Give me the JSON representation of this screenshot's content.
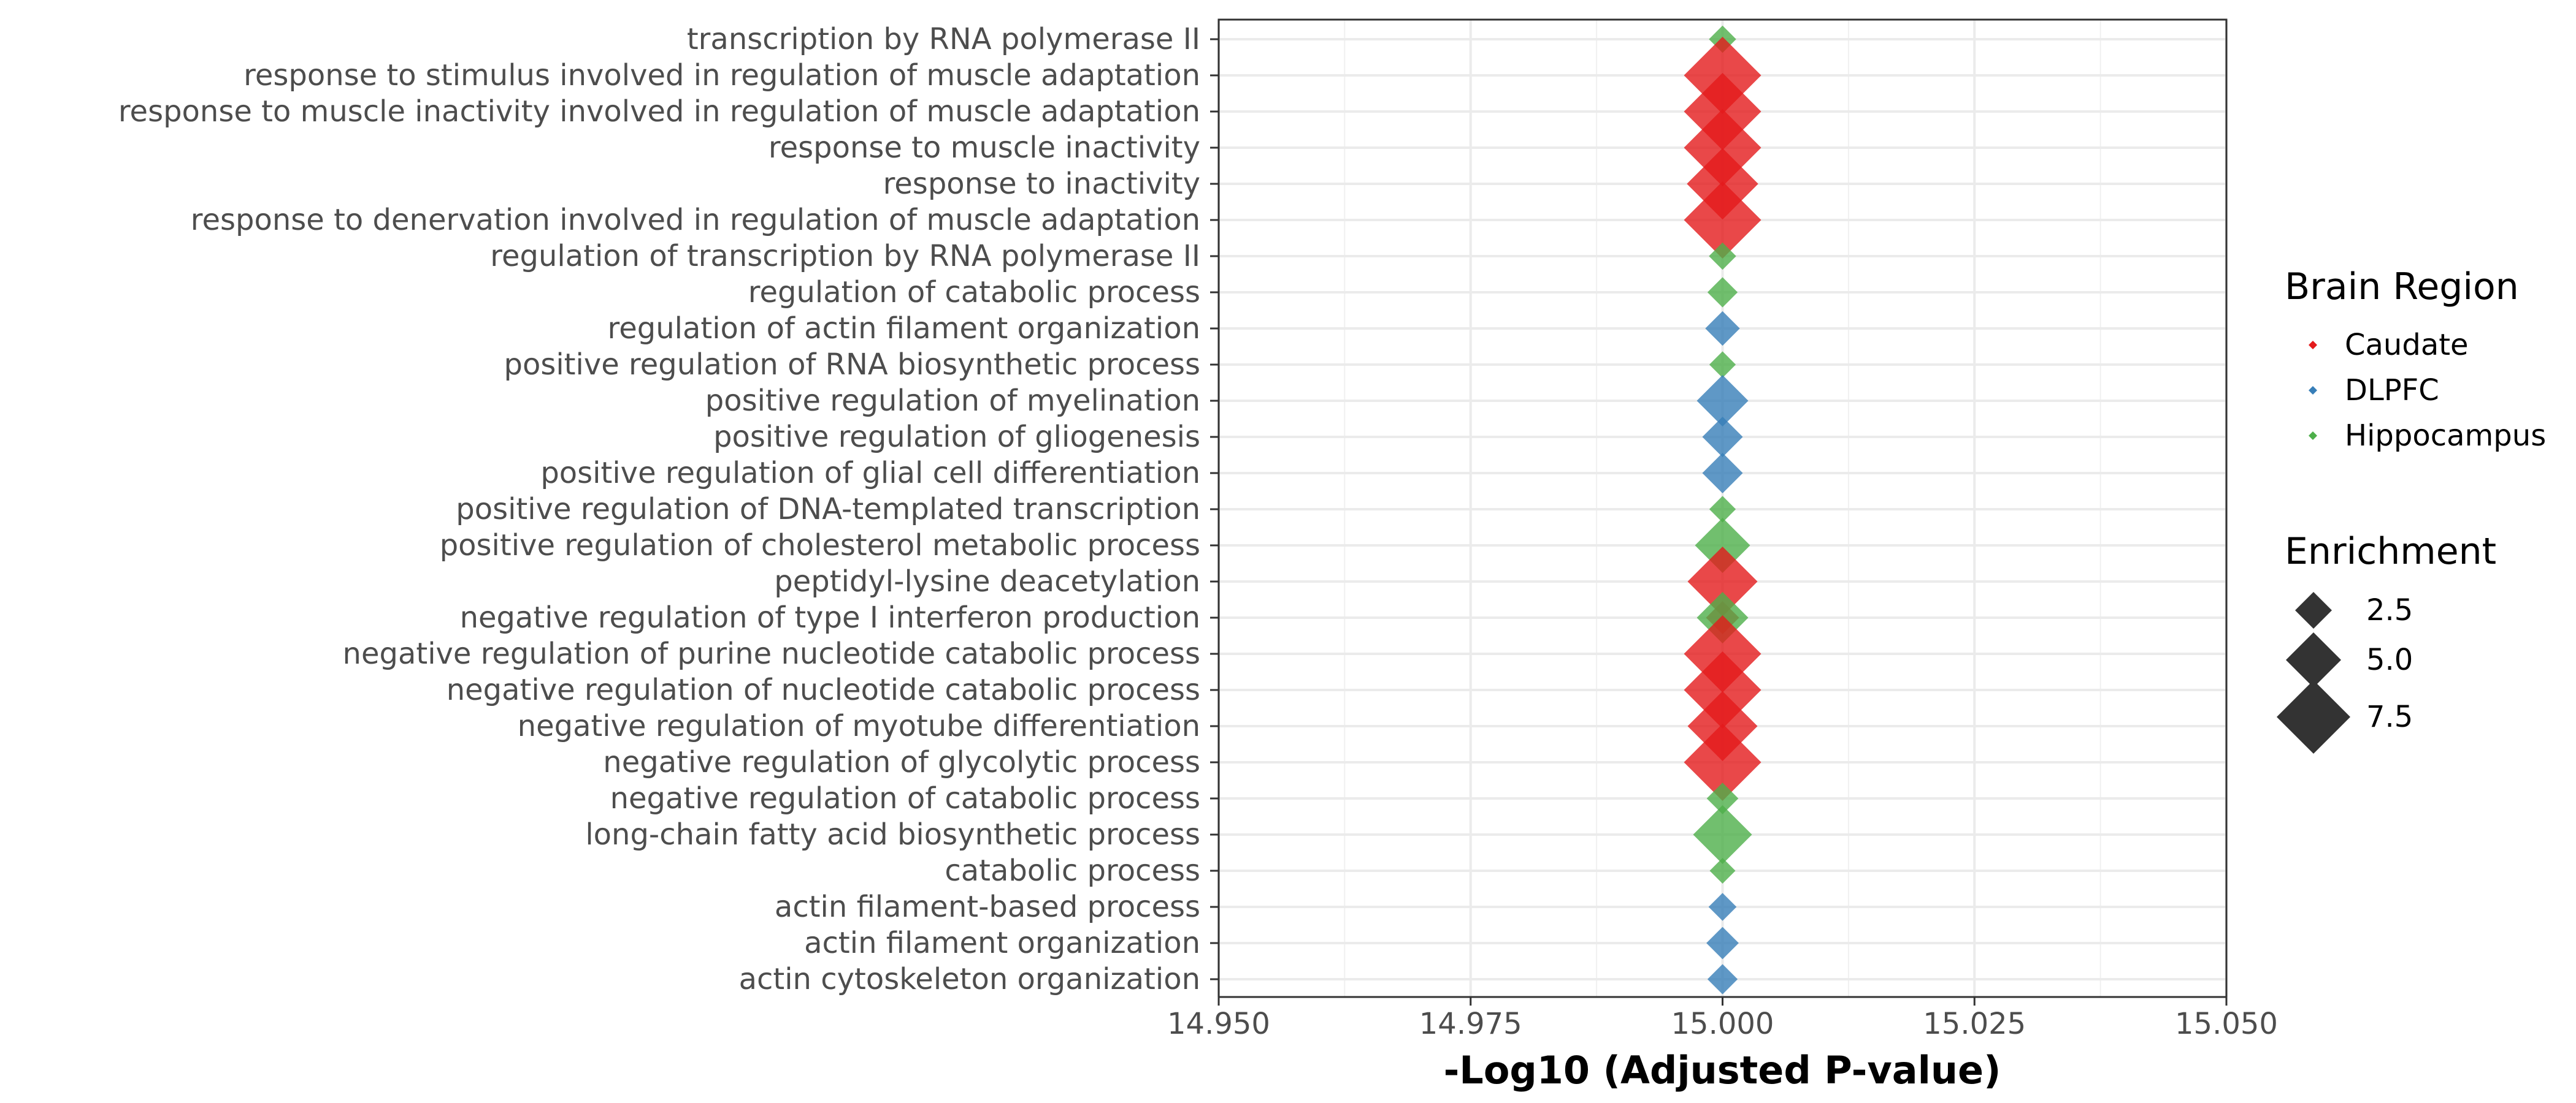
{
  "chart_data": {
    "type": "scatter",
    "xlabel": "-Log10 (Adjusted P-value)",
    "ylabel": "",
    "xlim": [
      14.95,
      15.05
    ],
    "xticks": [
      14.95,
      14.975,
      15.0,
      15.025,
      15.05
    ],
    "xtick_labels": [
      "14.950",
      "14.975",
      "15.000",
      "15.025",
      "15.050"
    ],
    "grid": true,
    "legend_position": "right",
    "colors": {
      "Caudate": "#e41a1c",
      "DLPFC": "#377eb8",
      "Hippocampus": "#4daf4a"
    },
    "categories": [
      "transcription by RNA polymerase II",
      "response to stimulus involved in regulation of muscle adaptation",
      "response to muscle inactivity involved in regulation of muscle adaptation",
      "response to muscle inactivity",
      "response to inactivity",
      "response to denervation involved in regulation of muscle adaptation",
      "regulation of transcription by RNA polymerase II",
      "regulation of catabolic process",
      "regulation of actin filament organization",
      "positive regulation of RNA biosynthetic process",
      "positive regulation of myelination",
      "positive regulation of gliogenesis",
      "positive regulation of glial cell differentiation",
      "positive regulation of DNA-templated transcription",
      "positive regulation of cholesterol metabolic process",
      "peptidyl-lysine deacetylation",
      "negative regulation of type I interferon production",
      "negative regulation of purine nucleotide catabolic process",
      "negative regulation of nucleotide catabolic process",
      "negative regulation of myotube differentiation",
      "negative regulation of glycolytic process",
      "negative regulation of catabolic process",
      "long-chain fatty acid biosynthetic process",
      "catabolic process",
      "actin filament-based process",
      "actin filament organization",
      "actin cytoskeleton organization"
    ],
    "points": [
      {
        "term": "transcription by RNA polymerase II",
        "x": 15.0,
        "region": "Hippocampus",
        "enrichment": 1.2
      },
      {
        "term": "response to stimulus involved in regulation of muscle adaptation",
        "x": 15.0,
        "region": "Caudate",
        "enrichment": 8.0
      },
      {
        "term": "response to muscle inactivity involved in regulation of muscle adaptation",
        "x": 15.0,
        "region": "Caudate",
        "enrichment": 8.0
      },
      {
        "term": "response to muscle inactivity",
        "x": 15.0,
        "region": "Caudate",
        "enrichment": 8.0
      },
      {
        "term": "response to inactivity",
        "x": 15.0,
        "region": "Caudate",
        "enrichment": 7.2
      },
      {
        "term": "response to denervation involved in regulation of muscle adaptation",
        "x": 15.0,
        "region": "Caudate",
        "enrichment": 8.0
      },
      {
        "term": "regulation of transcription by RNA polymerase II",
        "x": 15.0,
        "region": "Hippocampus",
        "enrichment": 1.2
      },
      {
        "term": "regulation of catabolic process",
        "x": 15.0,
        "region": "Hippocampus",
        "enrichment": 1.6
      },
      {
        "term": "regulation of actin filament organization",
        "x": 15.0,
        "region": "DLPFC",
        "enrichment": 2.2
      },
      {
        "term": "positive regulation of RNA biosynthetic process",
        "x": 15.0,
        "region": "Hippocampus",
        "enrichment": 1.1
      },
      {
        "term": "positive regulation of myelination",
        "x": 15.0,
        "region": "DLPFC",
        "enrichment": 4.5
      },
      {
        "term": "positive regulation of gliogenesis",
        "x": 15.0,
        "region": "DLPFC",
        "enrichment": 3.0
      },
      {
        "term": "positive regulation of glial cell differentiation",
        "x": 15.0,
        "region": "DLPFC",
        "enrichment": 3.0
      },
      {
        "term": "positive regulation of DNA-templated transcription",
        "x": 15.0,
        "region": "Hippocampus",
        "enrichment": 1.1
      },
      {
        "term": "positive regulation of cholesterol metabolic process",
        "x": 15.0,
        "region": "Hippocampus",
        "enrichment": 5.0
      },
      {
        "term": "peptidyl-lysine deacetylation",
        "x": 15.0,
        "region": "Caudate",
        "enrichment": 7.0
      },
      {
        "term": "negative regulation of type I interferon production",
        "x": 15.0,
        "region": "Caudate",
        "enrichment": 2.0
      },
      {
        "term": "negative regulation of type I interferon production",
        "x": 15.0,
        "region": "Hippocampus",
        "enrichment": 4.5
      },
      {
        "term": "negative regulation of purine nucleotide catabolic process",
        "x": 15.0,
        "region": "Caudate",
        "enrichment": 8.0
      },
      {
        "term": "negative regulation of nucleotide catabolic process",
        "x": 15.0,
        "region": "Caudate",
        "enrichment": 8.0
      },
      {
        "term": "negative regulation of myotube differentiation",
        "x": 15.0,
        "region": "Caudate",
        "enrichment": 7.0
      },
      {
        "term": "negative regulation of glycolytic process",
        "x": 15.0,
        "region": "Caudate",
        "enrichment": 8.0
      },
      {
        "term": "negative regulation of catabolic process",
        "x": 15.0,
        "region": "Hippocampus",
        "enrichment": 1.8
      },
      {
        "term": "long-chain fatty acid biosynthetic process",
        "x": 15.0,
        "region": "Hippocampus",
        "enrichment": 5.5
      },
      {
        "term": "catabolic process",
        "x": 15.0,
        "region": "Hippocampus",
        "enrichment": 1.0
      },
      {
        "term": "actin filament-based process",
        "x": 15.0,
        "region": "DLPFC",
        "enrichment": 1.3
      },
      {
        "term": "actin filament organization",
        "x": 15.0,
        "region": "DLPFC",
        "enrichment": 1.9
      },
      {
        "term": "actin cytoskeleton organization",
        "x": 15.0,
        "region": "DLPFC",
        "enrichment": 1.6
      }
    ],
    "legend": {
      "color_title": "Brain Region",
      "color_entries": [
        "Caudate",
        "DLPFC",
        "Hippocampus"
      ],
      "size_title": "Enrichment",
      "size_entries": [
        {
          "label": "2.5",
          "value": 2.5
        },
        {
          "label": "5.0",
          "value": 5.0
        },
        {
          "label": "7.5",
          "value": 7.5
        }
      ]
    }
  }
}
